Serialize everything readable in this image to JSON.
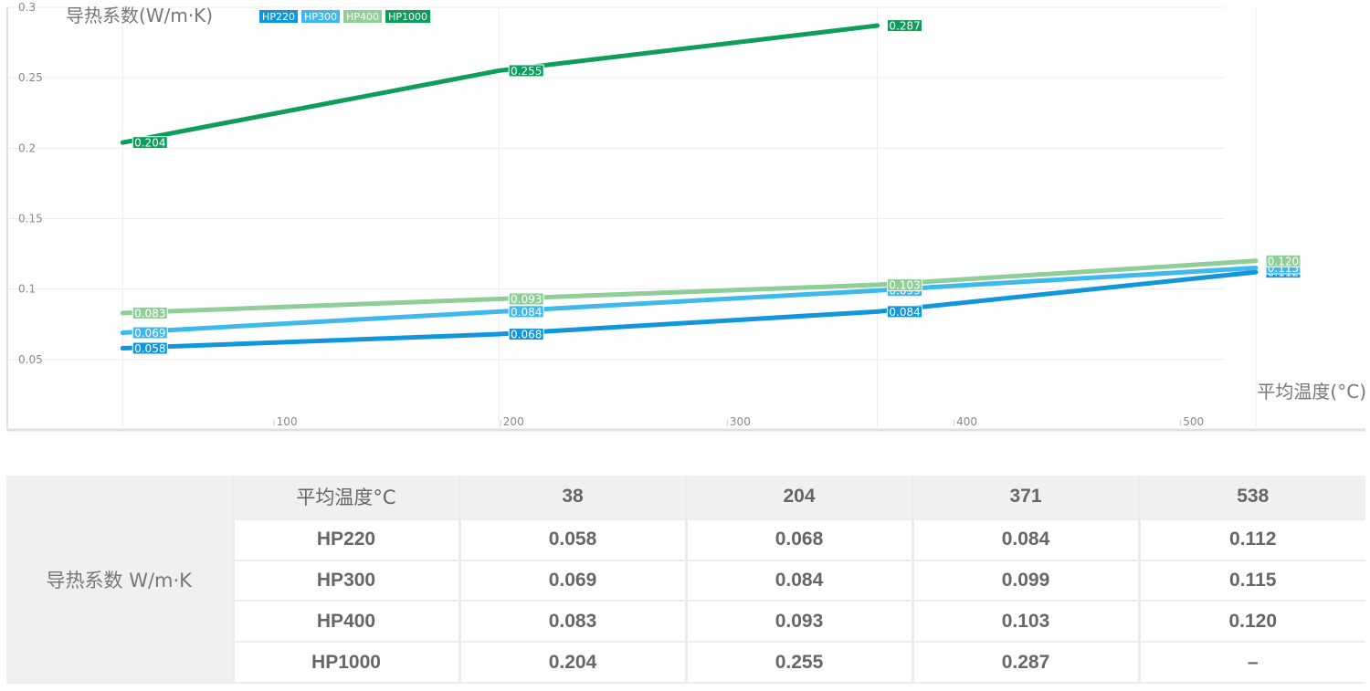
{
  "chart_data": {
    "type": "line",
    "ylabel": "导热系数(W/m·K)",
    "xlabel": "平均温度(°C)",
    "ylim": [
      0.0,
      0.3
    ],
    "yticks": [
      "0.05",
      "0.1",
      "0.15",
      "0.2",
      "0.25",
      "0.3"
    ],
    "xticks": [
      "100",
      "200",
      "300",
      "400",
      "500"
    ],
    "legend_position": "top-left",
    "grid": true,
    "series": [
      {
        "name": "HP220",
        "color": "#1296db",
        "x": [
          38,
          204,
          371,
          538
        ],
        "values": [
          0.058,
          0.068,
          0.084,
          0.112
        ],
        "labels": [
          "0.058",
          "0.068",
          "0.084",
          "0.112"
        ]
      },
      {
        "name": "HP300",
        "color": "#3fb8ec",
        "x": [
          38,
          204,
          371,
          538
        ],
        "values": [
          0.069,
          0.084,
          0.099,
          0.115
        ],
        "labels": [
          "0.069",
          "0.084",
          "0.099",
          "0.115"
        ]
      },
      {
        "name": "HP400",
        "color": "#8fce96",
        "x": [
          38,
          204,
          371,
          538
        ],
        "values": [
          0.083,
          0.093,
          0.103,
          0.12
        ],
        "labels": [
          "0.083",
          "0.093",
          "0.103",
          "0.120"
        ]
      },
      {
        "name": "HP1000",
        "color": "#0e9d5a",
        "x": [
          38,
          204,
          371
        ],
        "values": [
          0.204,
          0.255,
          0.287
        ],
        "labels": [
          "0.204",
          "0.255",
          "0.287"
        ]
      }
    ]
  },
  "table": {
    "row_label": "导热系数 W/m·K",
    "header": [
      "平均温度°C",
      "38",
      "204",
      "371",
      "538"
    ],
    "rows": [
      [
        "HP220",
        "0.058",
        "0.068",
        "0.084",
        "0.112"
      ],
      [
        "HP300",
        "0.069",
        "0.084",
        "0.099",
        "0.115"
      ],
      [
        "HP400",
        "0.083",
        "0.093",
        "0.103",
        "0.120"
      ],
      [
        "HP1000",
        "0.204",
        "0.255",
        "0.287",
        "–"
      ]
    ]
  }
}
